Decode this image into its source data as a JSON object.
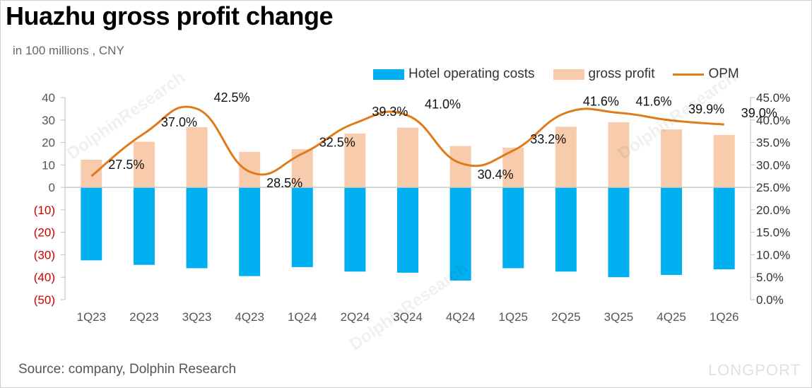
{
  "title": "Huazhu gross profit change",
  "subtitle": "in 100 millions , CNY",
  "source": "Source: company, Dolphin Research",
  "watermark": {
    "text": "DolphinResearch",
    "logo": "LONGPORT"
  },
  "colors": {
    "costs": "#00B0F0",
    "gross": "#F8CBAD",
    "opm": "#E07B1A",
    "negative_tick": "#CC0000",
    "tick": "#555555"
  },
  "chart_data": {
    "type": "bar",
    "categories": [
      "1Q23",
      "2Q23",
      "3Q23",
      "4Q23",
      "1Q24",
      "2Q24",
      "3Q24",
      "4Q24",
      "1Q25",
      "2Q25",
      "3Q25",
      "4Q25",
      "1Q26"
    ],
    "series": [
      {
        "name": "Hotel operating costs",
        "type": "bar",
        "axis": "left",
        "values": [
          -32.5,
          -34.5,
          -36,
          -39.5,
          -35.5,
          -37.5,
          -38,
          -41.5,
          -36,
          -37.5,
          -40,
          -39,
          -36.5
        ]
      },
      {
        "name": "gross profit",
        "type": "bar",
        "axis": "left",
        "values": [
          12.3,
          20.3,
          26.8,
          15.8,
          17.0,
          24.0,
          26.6,
          18.4,
          17.7,
          27.0,
          29.0,
          25.8,
          23.3
        ]
      },
      {
        "name": "OPM",
        "type": "line",
        "axis": "right",
        "values": [
          27.5,
          37.0,
          42.5,
          28.5,
          32.5,
          39.3,
          41.0,
          30.4,
          33.2,
          41.6,
          41.6,
          39.9,
          39.0
        ],
        "labels": [
          "27.5%",
          "37.0%",
          "42.5%",
          "28.5%",
          "32.5%",
          "39.3%",
          "41.0%",
          "30.4%",
          "33.2%",
          "41.6%",
          "41.6%",
          "39.9%",
          "39.0%"
        ]
      }
    ],
    "yleft": {
      "ylim": [
        -50,
        40
      ],
      "ticks": [
        40,
        30,
        20,
        10,
        0,
        -10,
        -20,
        -30,
        -40,
        -50
      ],
      "tick_labels": [
        "40",
        "30",
        "20",
        "10",
        "0",
        "(10)",
        "(20)",
        "(30)",
        "(40)",
        "(50)"
      ]
    },
    "yright": {
      "ylim": [
        0,
        45
      ],
      "ticks": [
        45,
        40,
        35,
        30,
        25,
        20,
        15,
        10,
        5,
        0
      ],
      "tick_labels": [
        "45.0%",
        "40.0%",
        "35.0%",
        "30.0%",
        "25.0%",
        "20.0%",
        "15.0%",
        "10.0%",
        "5.0%",
        "0.0%"
      ]
    },
    "legend": "top-right",
    "grid": false
  }
}
